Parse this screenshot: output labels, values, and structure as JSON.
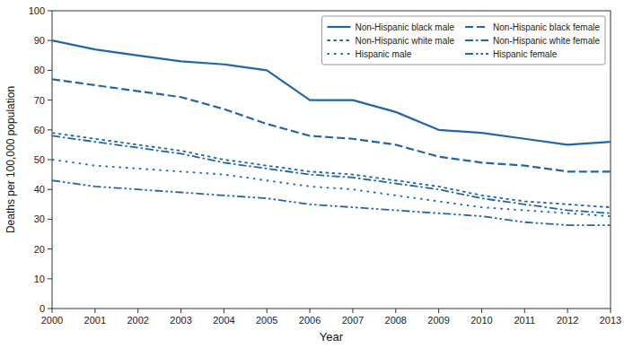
{
  "chart_data": {
    "type": "line",
    "x": [
      2000,
      2001,
      2002,
      2003,
      2004,
      2005,
      2006,
      2007,
      2008,
      2009,
      2010,
      2011,
      2012,
      2013
    ],
    "xlabel": "Year",
    "ylabel": "Deaths per 100,000 population",
    "xlim": [
      2000,
      2013
    ],
    "xticks": [
      2000,
      2001,
      2002,
      2003,
      2004,
      2005,
      2006,
      2007,
      2008,
      2009,
      2010,
      2011,
      2012,
      2013
    ],
    "ylim": [
      0,
      100
    ],
    "yticks": [
      0,
      10,
      20,
      30,
      40,
      50,
      60,
      70,
      80,
      90,
      100
    ],
    "grid": false,
    "legend": "upper right",
    "color": "#2166ac",
    "series": [
      {
        "name": "Non-Hispanic black male",
        "line_style": "solid",
        "values": [
          90,
          87,
          85,
          83,
          82,
          80,
          70,
          70,
          66,
          60,
          59,
          57,
          55,
          56
        ]
      },
      {
        "name": "Non-Hispanic black female",
        "line_style": "dashed",
        "values": [
          77,
          75,
          73,
          71,
          67,
          62,
          58,
          57,
          55,
          51,
          49,
          48,
          46,
          46
        ]
      },
      {
        "name": "Non-Hispanic white male",
        "line_style": "dotted",
        "values": [
          59,
          57,
          55,
          53,
          50,
          48,
          46,
          45,
          43,
          41,
          38,
          36,
          35,
          34
        ]
      },
      {
        "name": "Non-Hispanic white female",
        "line_style": "dashdot",
        "values": [
          58,
          56,
          54,
          52,
          49,
          47,
          45,
          44,
          42,
          40,
          37,
          35,
          33,
          32
        ]
      },
      {
        "name": "Hispanic male",
        "line_style": "loosedotted",
        "values": [
          50,
          48,
          47,
          46,
          45,
          43,
          41,
          40,
          38,
          36,
          34,
          33,
          32,
          31
        ]
      },
      {
        "name": "Hispanic female",
        "line_style": "dashdotdot",
        "values": [
          43,
          41,
          40,
          39,
          38,
          37,
          35,
          34,
          33,
          32,
          31,
          29,
          28,
          28
        ]
      }
    ]
  }
}
